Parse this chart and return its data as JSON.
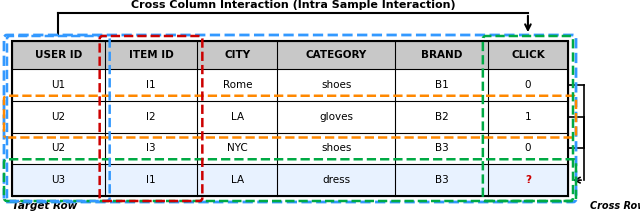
{
  "title": "Cross Column Interaction (Intra Sample Interaction)",
  "columns": [
    "USER ID",
    "ITEM ID",
    "CITY",
    "CATEGORY",
    "BRAND",
    "CLICK"
  ],
  "rows": [
    [
      "U1",
      "I1",
      "Rome",
      "shoes",
      "B1",
      "0"
    ],
    [
      "U2",
      "I2",
      "LA",
      "gloves",
      "B2",
      "1"
    ],
    [
      "U2",
      "I3",
      "NYC",
      "shoes",
      "B3",
      "0"
    ],
    [
      "U3",
      "I1",
      "LA",
      "dress",
      "B3",
      "?"
    ]
  ],
  "click_red_row": 3,
  "header_bg": "#c8c8c8",
  "blue_border": "#3399ff",
  "red_border": "#cc0000",
  "orange_border": "#ff8800",
  "green_border": "#00aa44",
  "bottom_left_label": "Target Row",
  "bottom_right_label": "Cross Row (Sample) Interaction"
}
